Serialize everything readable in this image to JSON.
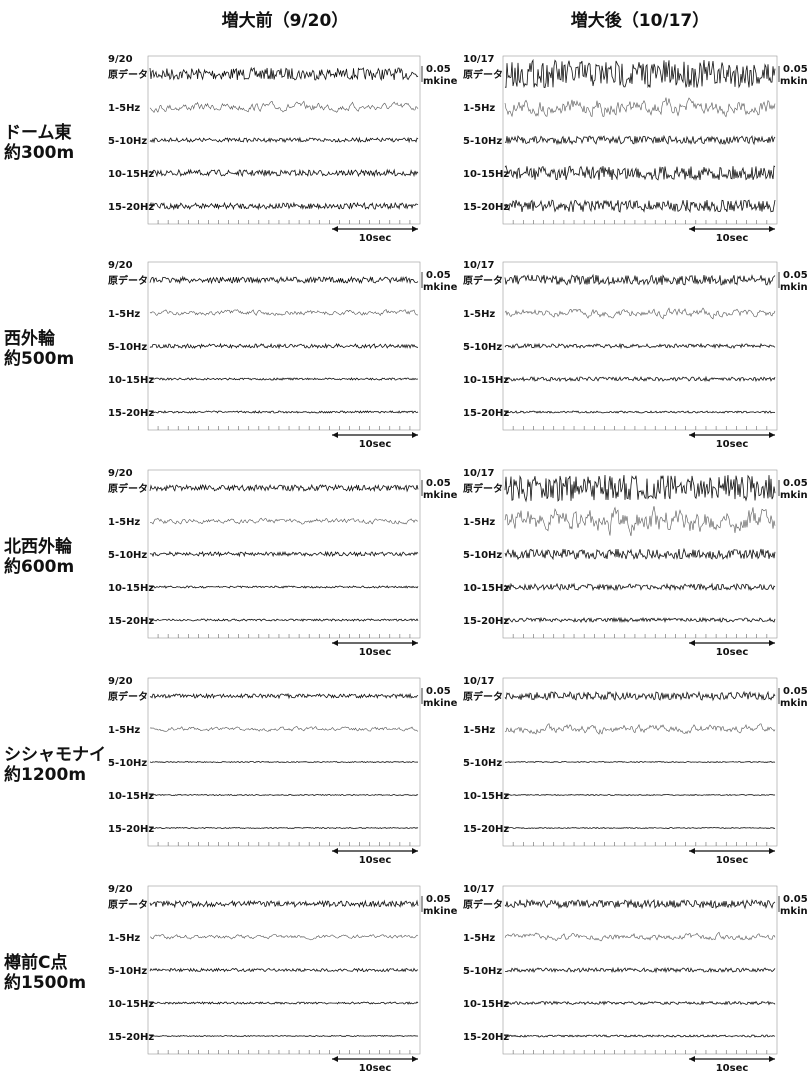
{
  "columns": [
    {
      "title": "増大前（9/20）",
      "date": "9/20"
    },
    {
      "title": "増大後（10/17）",
      "date": "10/17"
    }
  ],
  "rows": [
    {
      "station": "ドーム東",
      "distance": "約300m"
    },
    {
      "station": "西外輪",
      "distance": "約500m"
    },
    {
      "station": "北西外輪",
      "distance": "約600m"
    },
    {
      "station": "シシャモナイ",
      "distance": "約1200m"
    },
    {
      "station": "樽前C点",
      "distance": "約1500m"
    }
  ],
  "trace_labels": [
    "原データ",
    "1-5Hz",
    "5-10Hz",
    "10-15Hz",
    "15-20Hz"
  ],
  "scale_value": "0.05",
  "scale_unit": "mkine",
  "time_scale": "10sec"
}
